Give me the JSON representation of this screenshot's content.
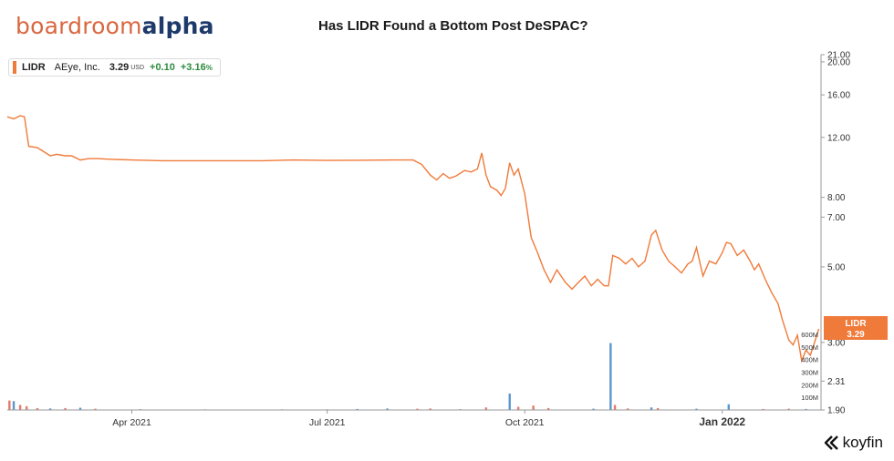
{
  "header": {
    "logo_part1": "boardroom",
    "logo_part2": "alpha",
    "title": "Has LIDR Found a Bottom Post DeSPAC?"
  },
  "legend": {
    "ticker": "LIDR",
    "name": "AEye, Inc.",
    "last": "3.29",
    "currency": "USD",
    "change": "+0.10",
    "pct": "+3.16",
    "pct_sign": "%"
  },
  "price_tag": {
    "ticker": "LIDR",
    "value": "3.29"
  },
  "brand": "koyfin",
  "colors": {
    "line": "#f07a3a",
    "vol_up": "#5b96cc",
    "vol_down": "#e47a6a",
    "tag": "#f07a3a"
  },
  "chart_data": {
    "type": "line",
    "title": "Has LIDR Found a Bottom Post DeSPAC?",
    "y_scale": "log",
    "ylim": [
      1.9,
      21.0
    ],
    "y_ticks": [
      "1.90",
      "2.31",
      "3.00",
      "5.00",
      "7.00",
      "8.00",
      "12.00",
      "16.00",
      "20.00",
      "21.00"
    ],
    "x_ticks": [
      {
        "label": "Apr 2021",
        "date": "2021-04-01"
      },
      {
        "label": "Jul 2021",
        "date": "2021-07-01"
      },
      {
        "label": "Oct 2021",
        "date": "2021-10-01"
      },
      {
        "label": "Jan 2022",
        "date": "2022-01-01",
        "bold": true
      }
    ],
    "xlim": [
      "2021-02-02",
      "2022-02-16"
    ],
    "series": [
      {
        "points": [
          [
            "2021-02-02",
            13.8
          ],
          [
            "2021-02-05",
            13.6
          ],
          [
            "2021-02-08",
            13.9
          ],
          [
            "2021-02-10",
            13.8
          ],
          [
            "2021-02-12",
            11.3
          ],
          [
            "2021-02-16",
            11.2
          ],
          [
            "2021-02-18",
            11.0
          ],
          [
            "2021-02-22",
            10.6
          ],
          [
            "2021-02-25",
            10.7
          ],
          [
            "2021-03-01",
            10.6
          ],
          [
            "2021-03-04",
            10.6
          ],
          [
            "2021-03-08",
            10.3
          ],
          [
            "2021-03-12",
            10.4
          ],
          [
            "2021-03-16",
            10.4
          ],
          [
            "2021-03-22",
            10.35
          ],
          [
            "2021-04-01",
            10.3
          ],
          [
            "2021-04-15",
            10.25
          ],
          [
            "2021-05-01",
            10.25
          ],
          [
            "2021-05-15",
            10.25
          ],
          [
            "2021-06-01",
            10.25
          ],
          [
            "2021-06-15",
            10.3
          ],
          [
            "2021-07-01",
            10.27
          ],
          [
            "2021-07-15",
            10.28
          ],
          [
            "2021-08-01",
            10.3
          ],
          [
            "2021-08-10",
            10.3
          ],
          [
            "2021-08-14",
            10.0
          ],
          [
            "2021-08-18",
            9.3
          ],
          [
            "2021-08-21",
            9.0
          ],
          [
            "2021-08-24",
            9.4
          ],
          [
            "2021-08-27",
            9.1
          ],
          [
            "2021-08-30",
            9.25
          ],
          [
            "2021-09-03",
            9.6
          ],
          [
            "2021-09-06",
            9.5
          ],
          [
            "2021-09-09",
            9.7
          ],
          [
            "2021-09-11",
            10.8
          ],
          [
            "2021-09-13",
            9.3
          ],
          [
            "2021-09-15",
            8.6
          ],
          [
            "2021-09-18",
            8.4
          ],
          [
            "2021-09-20",
            8.1
          ],
          [
            "2021-09-22",
            8.5
          ],
          [
            "2021-09-24",
            10.1
          ],
          [
            "2021-09-26",
            9.3
          ],
          [
            "2021-09-28",
            9.7
          ],
          [
            "2021-10-01",
            8.2
          ],
          [
            "2021-10-04",
            6.1
          ],
          [
            "2021-10-07",
            5.5
          ],
          [
            "2021-10-10",
            4.9
          ],
          [
            "2021-10-13",
            4.5
          ],
          [
            "2021-10-16",
            4.9
          ],
          [
            "2021-10-20",
            4.5
          ],
          [
            "2021-10-23",
            4.3
          ],
          [
            "2021-10-26",
            4.5
          ],
          [
            "2021-10-29",
            4.7
          ],
          [
            "2021-11-01",
            4.4
          ],
          [
            "2021-11-04",
            4.6
          ],
          [
            "2021-11-07",
            4.4
          ],
          [
            "2021-11-09",
            4.4
          ],
          [
            "2021-11-11",
            5.4
          ],
          [
            "2021-11-14",
            5.3
          ],
          [
            "2021-11-17",
            5.1
          ],
          [
            "2021-11-20",
            5.3
          ],
          [
            "2021-11-23",
            5.0
          ],
          [
            "2021-11-26",
            5.2
          ],
          [
            "2021-11-29",
            6.2
          ],
          [
            "2021-12-01",
            6.4
          ],
          [
            "2021-12-04",
            5.6
          ],
          [
            "2021-12-07",
            5.2
          ],
          [
            "2021-12-10",
            5.0
          ],
          [
            "2021-12-13",
            4.8
          ],
          [
            "2021-12-16",
            5.1
          ],
          [
            "2021-12-18",
            5.2
          ],
          [
            "2021-12-20",
            5.7
          ],
          [
            "2021-12-23",
            4.7
          ],
          [
            "2021-12-26",
            5.2
          ],
          [
            "2021-12-29",
            5.1
          ],
          [
            "2022-01-01",
            5.5
          ],
          [
            "2022-01-03",
            5.9
          ],
          [
            "2022-01-05",
            5.85
          ],
          [
            "2022-01-08",
            5.4
          ],
          [
            "2022-01-11",
            5.6
          ],
          [
            "2022-01-14",
            5.2
          ],
          [
            "2022-01-16",
            4.9
          ],
          [
            "2022-01-18",
            5.1
          ],
          [
            "2022-01-21",
            4.6
          ],
          [
            "2022-01-24",
            4.2
          ],
          [
            "2022-01-27",
            3.9
          ],
          [
            "2022-01-29",
            3.5
          ],
          [
            "2022-02-01",
            3.05
          ],
          [
            "2022-02-03",
            2.95
          ],
          [
            "2022-02-05",
            3.15
          ],
          [
            "2022-02-07",
            2.65
          ],
          [
            "2022-02-09",
            2.85
          ],
          [
            "2022-02-11",
            2.75
          ],
          [
            "2022-02-13",
            3.0
          ],
          [
            "2022-02-15",
            3.29
          ]
        ]
      }
    ],
    "volume": {
      "y_ticks": [
        "100M",
        "200M",
        "300M",
        "400M",
        "500M",
        "600M"
      ],
      "ylim": [
        0,
        650
      ],
      "bars": [
        {
          "date": "2021-02-03",
          "value": 75,
          "dir": "down"
        },
        {
          "date": "2021-02-05",
          "value": 70,
          "dir": "up"
        },
        {
          "date": "2021-02-08",
          "value": 40,
          "dir": "down"
        },
        {
          "date": "2021-02-11",
          "value": 30,
          "dir": "down"
        },
        {
          "date": "2021-02-16",
          "value": 15,
          "dir": "down"
        },
        {
          "date": "2021-02-22",
          "value": 12,
          "dir": "up"
        },
        {
          "date": "2021-03-01",
          "value": 15,
          "dir": "down"
        },
        {
          "date": "2021-03-08",
          "value": 18,
          "dir": "up"
        },
        {
          "date": "2021-03-15",
          "value": 10,
          "dir": "down"
        },
        {
          "date": "2021-04-05",
          "value": 6,
          "dir": "up"
        },
        {
          "date": "2021-05-05",
          "value": 5,
          "dir": "down"
        },
        {
          "date": "2021-06-10",
          "value": 5,
          "dir": "up"
        },
        {
          "date": "2021-07-01",
          "value": 5,
          "dir": "down"
        },
        {
          "date": "2021-07-15",
          "value": 8,
          "dir": "up"
        },
        {
          "date": "2021-07-29",
          "value": 12,
          "dir": "up"
        },
        {
          "date": "2021-08-12",
          "value": 10,
          "dir": "down"
        },
        {
          "date": "2021-08-18",
          "value": 12,
          "dir": "down"
        },
        {
          "date": "2021-09-01",
          "value": 6,
          "dir": "up"
        },
        {
          "date": "2021-09-13",
          "value": 20,
          "dir": "down"
        },
        {
          "date": "2021-09-24",
          "value": 130,
          "dir": "up"
        },
        {
          "date": "2021-09-28",
          "value": 25,
          "dir": "down"
        },
        {
          "date": "2021-10-05",
          "value": 35,
          "dir": "down"
        },
        {
          "date": "2021-10-12",
          "value": 15,
          "dir": "down"
        },
        {
          "date": "2021-11-02",
          "value": 10,
          "dir": "up"
        },
        {
          "date": "2021-11-10",
          "value": 530,
          "dir": "up"
        },
        {
          "date": "2021-11-12",
          "value": 40,
          "dir": "down"
        },
        {
          "date": "2021-11-18",
          "value": 12,
          "dir": "down"
        },
        {
          "date": "2021-11-29",
          "value": 20,
          "dir": "up"
        },
        {
          "date": "2021-12-02",
          "value": 15,
          "dir": "down"
        },
        {
          "date": "2021-12-20",
          "value": 10,
          "dir": "up"
        },
        {
          "date": "2022-01-04",
          "value": 45,
          "dir": "up"
        },
        {
          "date": "2022-01-20",
          "value": 8,
          "dir": "down"
        },
        {
          "date": "2022-02-01",
          "value": 10,
          "dir": "down"
        },
        {
          "date": "2022-02-09",
          "value": 8,
          "dir": "up"
        }
      ]
    }
  }
}
